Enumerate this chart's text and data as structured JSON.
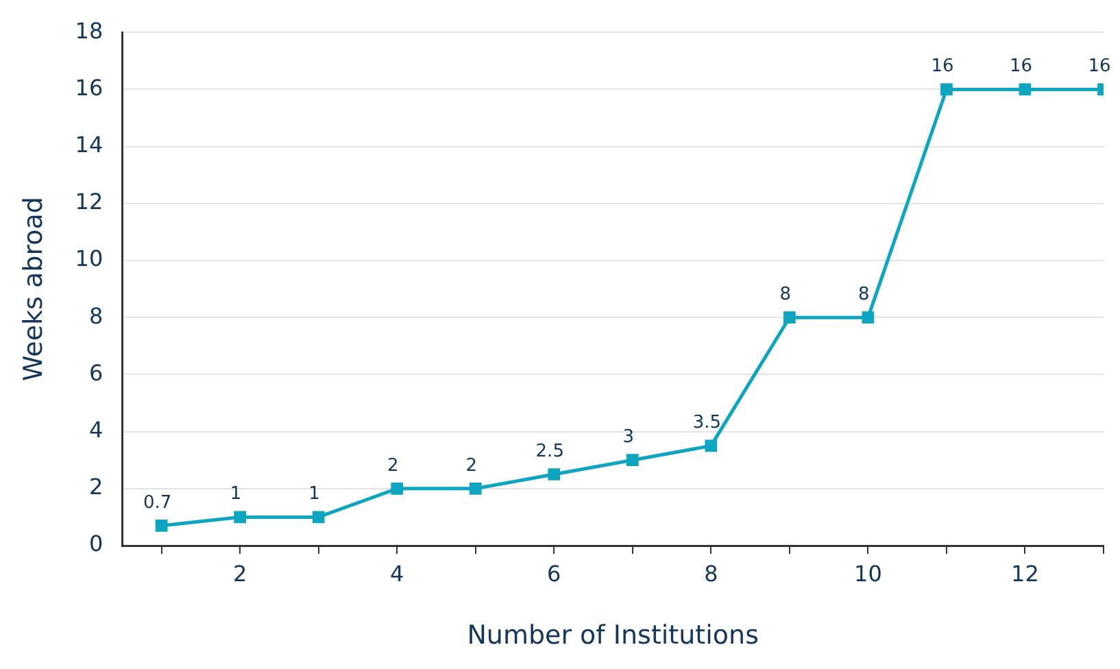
{
  "chart_data": {
    "type": "line",
    "xlabel": "Number of Institutions",
    "ylabel": "Weeks abroad",
    "x": [
      1,
      2,
      3,
      4,
      5,
      6,
      7,
      8,
      9,
      10,
      11,
      12,
      13
    ],
    "series": [
      {
        "color": "#0ea5c0",
        "values": [
          0.7,
          1,
          1,
          2,
          2,
          2.5,
          3,
          3.5,
          8,
          8,
          16,
          16,
          16
        ]
      }
    ],
    "xlim": [
      0.5,
      13
    ],
    "xticks": [
      {
        "value": 1,
        "label": null
      },
      2,
      {
        "value": 3,
        "label": null
      },
      4,
      {
        "value": 5,
        "label": null
      },
      6,
      {
        "value": 7,
        "label": null
      },
      8,
      {
        "value": 9,
        "label": null
      },
      10,
      {
        "value": 11,
        "label": null
      },
      12,
      {
        "value": 13,
        "label": null
      }
    ],
    "ylim": [
      0,
      18
    ],
    "yticks": [
      0,
      2,
      4,
      6,
      8,
      10,
      12,
      14,
      16,
      18
    ],
    "grid": "y",
    "legend": false,
    "marker": "square",
    "line_style": "solid",
    "data_labels": true
  }
}
